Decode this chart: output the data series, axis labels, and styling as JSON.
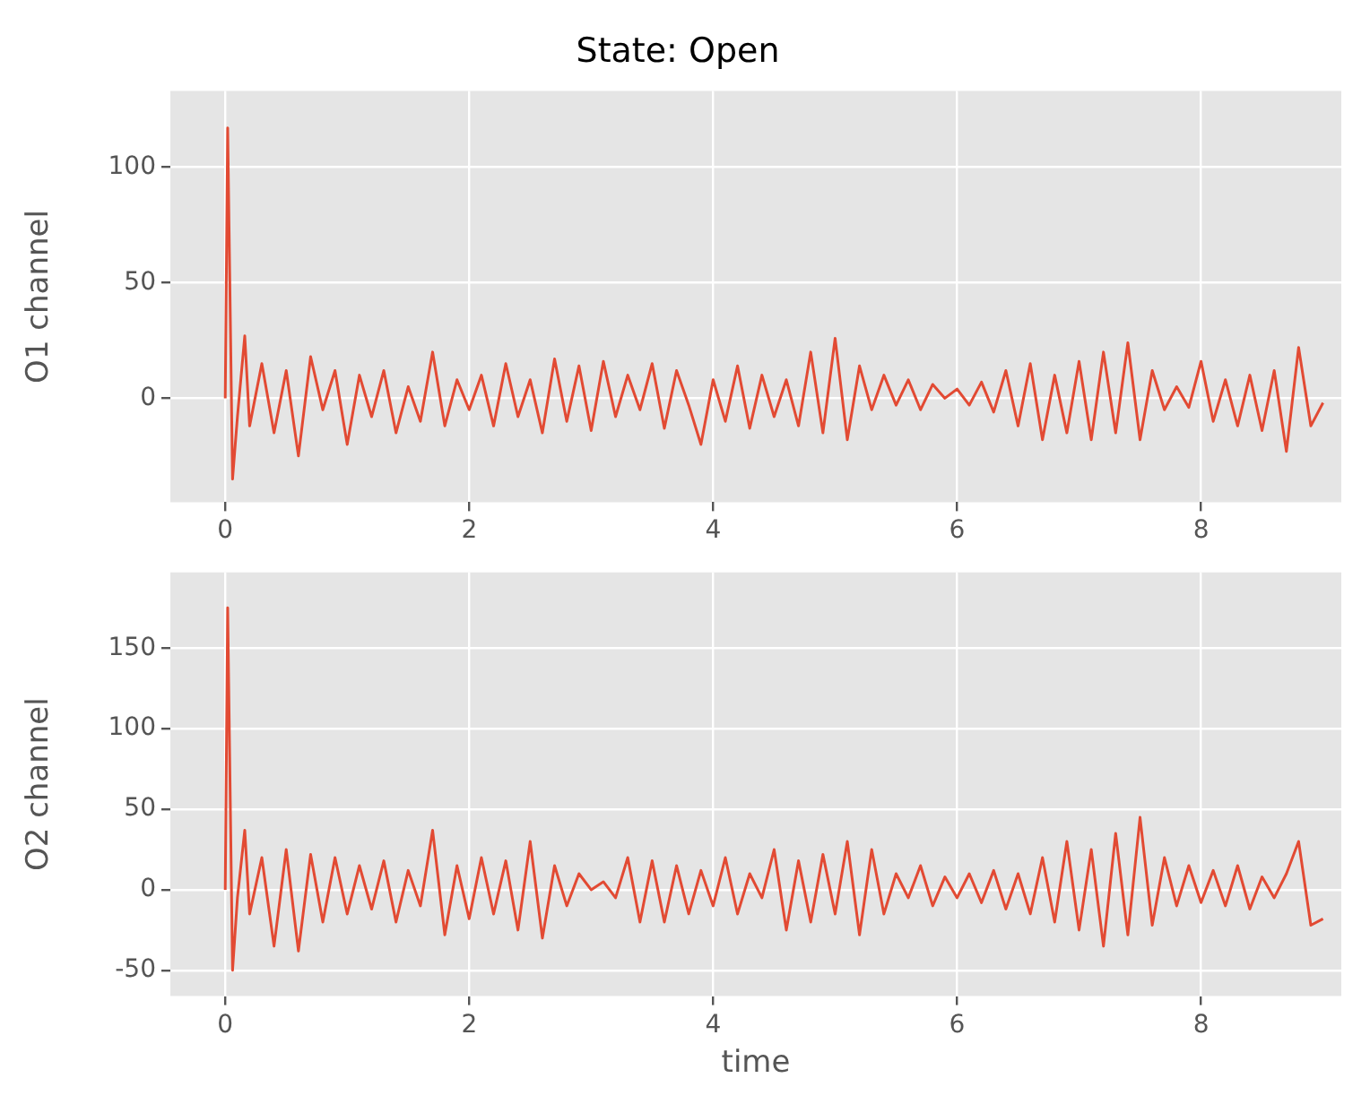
{
  "chart_data": [
    {
      "type": "line",
      "title": "State: Open",
      "ylabel": "O1 channel",
      "grid": true,
      "marker": "none",
      "xlim": [
        -0.45,
        9.15
      ],
      "xticks": [
        0,
        2,
        4,
        6,
        8
      ],
      "ylim": [
        -45,
        133
      ],
      "yticks": [
        0,
        50,
        100
      ],
      "x": [
        0,
        0.02,
        0.06,
        0.1,
        0.16,
        0.2,
        0.3,
        0.4,
        0.5,
        0.6,
        0.7,
        0.8,
        0.9,
        1.0,
        1.1,
        1.2,
        1.3,
        1.4,
        1.5,
        1.6,
        1.7,
        1.8,
        1.9,
        2.0,
        2.1,
        2.2,
        2.3,
        2.4,
        2.5,
        2.6,
        2.7,
        2.8,
        2.9,
        3.0,
        3.1,
        3.2,
        3.3,
        3.4,
        3.5,
        3.6,
        3.7,
        3.8,
        3.9,
        4.0,
        4.1,
        4.2,
        4.3,
        4.4,
        4.5,
        4.6,
        4.7,
        4.8,
        4.9,
        5.0,
        5.1,
        5.2,
        5.3,
        5.4,
        5.5,
        5.6,
        5.7,
        5.8,
        5.9,
        6.0,
        6.1,
        6.2,
        6.3,
        6.4,
        6.5,
        6.6,
        6.7,
        6.8,
        6.9,
        7.0,
        7.1,
        7.2,
        7.3,
        7.4,
        7.5,
        7.6,
        7.7,
        7.8,
        7.9,
        8.0,
        8.1,
        8.2,
        8.3,
        8.4,
        8.5,
        8.6,
        8.7,
        8.8,
        8.9,
        9.0
      ],
      "series": [
        {
          "color": "#e24a33",
          "values": [
            0,
            117,
            -35,
            -8,
            27,
            -12,
            15,
            -15,
            12,
            -25,
            18,
            -5,
            12,
            -20,
            10,
            -8,
            12,
            -15,
            5,
            -10,
            20,
            -12,
            8,
            -5,
            10,
            -12,
            15,
            -8,
            8,
            -15,
            17,
            -10,
            14,
            -14,
            16,
            -8,
            10,
            -5,
            15,
            -13,
            12,
            -3,
            -20,
            8,
            -10,
            14,
            -13,
            10,
            -8,
            8,
            -12,
            20,
            -15,
            26,
            -18,
            14,
            -5,
            10,
            -3,
            8,
            -5,
            6,
            0,
            4,
            -3,
            7,
            -6,
            12,
            -12,
            15,
            -18,
            10,
            -15,
            16,
            -18,
            20,
            -15,
            24,
            -18,
            12,
            -5,
            5,
            -4,
            16,
            -10,
            8,
            -12,
            10,
            -14,
            12,
            -23,
            22,
            -12,
            -2
          ]
        }
      ]
    },
    {
      "type": "line",
      "xlabel": "time",
      "ylabel": "O2 channel",
      "grid": true,
      "marker": "none",
      "xlim": [
        -0.45,
        9.15
      ],
      "xticks": [
        0,
        2,
        4,
        6,
        8
      ],
      "ylim": [
        -66,
        197
      ],
      "yticks": [
        -50,
        0,
        50,
        100,
        150
      ],
      "x": [
        0,
        0.02,
        0.06,
        0.1,
        0.16,
        0.2,
        0.3,
        0.4,
        0.5,
        0.6,
        0.7,
        0.8,
        0.9,
        1.0,
        1.1,
        1.2,
        1.3,
        1.4,
        1.5,
        1.6,
        1.7,
        1.8,
        1.9,
        2.0,
        2.1,
        2.2,
        2.3,
        2.4,
        2.5,
        2.6,
        2.7,
        2.8,
        2.9,
        3.0,
        3.1,
        3.2,
        3.3,
        3.4,
        3.5,
        3.6,
        3.7,
        3.8,
        3.9,
        4.0,
        4.1,
        4.2,
        4.3,
        4.4,
        4.5,
        4.6,
        4.7,
        4.8,
        4.9,
        5.0,
        5.1,
        5.2,
        5.3,
        5.4,
        5.5,
        5.6,
        5.7,
        5.8,
        5.9,
        6.0,
        6.1,
        6.2,
        6.3,
        6.4,
        6.5,
        6.6,
        6.7,
        6.8,
        6.9,
        7.0,
        7.1,
        7.2,
        7.3,
        7.4,
        7.5,
        7.6,
        7.7,
        7.8,
        7.9,
        8.0,
        8.1,
        8.2,
        8.3,
        8.4,
        8.5,
        8.6,
        8.7,
        8.8,
        8.9,
        9.0
      ],
      "series": [
        {
          "color": "#e24a33",
          "values": [
            0,
            175,
            -50,
            -5,
            37,
            -15,
            20,
            -35,
            25,
            -38,
            22,
            -20,
            20,
            -15,
            15,
            -12,
            18,
            -20,
            12,
            -10,
            37,
            -28,
            15,
            -18,
            20,
            -15,
            18,
            -25,
            30,
            -30,
            15,
            -10,
            10,
            0,
            5,
            -5,
            20,
            -20,
            18,
            -20,
            15,
            -15,
            12,
            -10,
            20,
            -15,
            10,
            -5,
            25,
            -25,
            18,
            -20,
            22,
            -15,
            30,
            -28,
            25,
            -15,
            10,
            -5,
            15,
            -10,
            8,
            -5,
            10,
            -8,
            12,
            -12,
            10,
            -15,
            20,
            -20,
            30,
            -25,
            25,
            -35,
            35,
            -28,
            45,
            -22,
            20,
            -10,
            15,
            -8,
            12,
            -10,
            15,
            -12,
            8,
            -5,
            10,
            30,
            -22,
            -18
          ]
        }
      ]
    }
  ]
}
